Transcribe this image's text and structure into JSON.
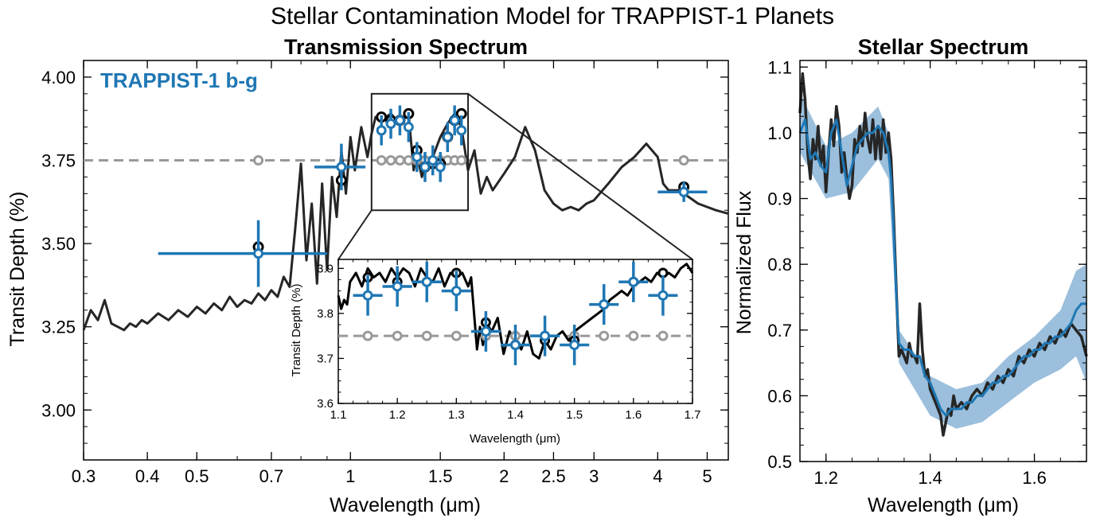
{
  "figure": {
    "suptitle": "Stellar Contamination Model for TRAPPIST-1 Planets"
  },
  "colors": {
    "model": "#262626",
    "data": "#1f77b4",
    "reference": "#999999",
    "model_points": "#000000",
    "band": "#8ab4d6"
  },
  "chart_data": [
    {
      "id": "transmission",
      "type": "line",
      "title": "Transmission Spectrum",
      "xlabel": "Wavelength (μm)",
      "ylabel": "Transit Depth (%)",
      "xscale": "log",
      "xlim": [
        0.3,
        5.5
      ],
      "ylim": [
        2.85,
        4.05
      ],
      "xticks": [
        0.3,
        0.4,
        0.5,
        0.7,
        1,
        1.5,
        2,
        2.5,
        3,
        4,
        5
      ],
      "xticklabels": [
        "0.3",
        "0.4",
        "0.5",
        "0.7",
        "1",
        "1.5",
        "2",
        "2.5",
        "3",
        "4",
        "5"
      ],
      "yticks": [
        3.0,
        3.25,
        3.5,
        3.75,
        4.0
      ],
      "yticklabels": [
        "3.00",
        "3.25",
        "3.50",
        "3.75",
        "4.00"
      ],
      "legend": {
        "text": "TRAPPIST-1 b-g",
        "loc": "upper left"
      },
      "reference_line": {
        "y": 3.75,
        "style": "dashed"
      },
      "model_line": {
        "x": [
          0.3,
          0.31,
          0.32,
          0.33,
          0.34,
          0.35,
          0.36,
          0.37,
          0.38,
          0.39,
          0.4,
          0.42,
          0.44,
          0.46,
          0.48,
          0.5,
          0.52,
          0.54,
          0.56,
          0.58,
          0.6,
          0.62,
          0.64,
          0.66,
          0.68,
          0.7,
          0.72,
          0.74,
          0.76,
          0.78,
          0.8,
          0.82,
          0.84,
          0.86,
          0.88,
          0.9,
          0.92,
          0.94,
          0.96,
          0.98,
          1.0,
          1.02,
          1.05,
          1.08,
          1.1,
          1.12,
          1.15,
          1.2,
          1.25,
          1.3,
          1.33,
          1.35,
          1.38,
          1.4,
          1.42,
          1.45,
          1.5,
          1.55,
          1.6,
          1.65,
          1.7,
          1.75,
          1.8,
          1.85,
          1.9,
          2.0,
          2.1,
          2.2,
          2.3,
          2.4,
          2.5,
          2.6,
          2.7,
          2.8,
          2.9,
          3.0,
          3.2,
          3.4,
          3.6,
          3.8,
          4.0,
          4.1,
          4.2,
          4.4,
          4.6,
          4.8,
          5.0,
          5.2,
          5.5
        ],
        "y": [
          3.24,
          3.3,
          3.27,
          3.33,
          3.26,
          3.25,
          3.24,
          3.26,
          3.25,
          3.27,
          3.26,
          3.29,
          3.27,
          3.3,
          3.28,
          3.31,
          3.29,
          3.32,
          3.3,
          3.34,
          3.31,
          3.33,
          3.32,
          3.35,
          3.33,
          3.36,
          3.34,
          3.4,
          3.37,
          3.55,
          3.74,
          3.45,
          3.62,
          3.38,
          3.68,
          3.42,
          3.7,
          3.58,
          3.78,
          3.65,
          3.82,
          3.72,
          3.85,
          3.76,
          3.83,
          3.88,
          3.87,
          3.89,
          3.86,
          3.89,
          3.72,
          3.77,
          3.7,
          3.73,
          3.74,
          3.76,
          3.82,
          3.86,
          3.89,
          3.85,
          3.72,
          3.78,
          3.65,
          3.7,
          3.66,
          3.71,
          3.76,
          3.85,
          3.78,
          3.66,
          3.62,
          3.6,
          3.61,
          3.6,
          3.62,
          3.63,
          3.68,
          3.73,
          3.76,
          3.8,
          3.76,
          3.68,
          3.66,
          3.66,
          3.64,
          3.62,
          3.61,
          3.6,
          3.59
        ]
      },
      "model_binned": {
        "x": [
          0.66,
          0.96,
          1.15,
          1.2,
          1.25,
          1.3,
          1.35,
          1.4,
          1.45,
          1.5,
          1.55,
          1.6,
          1.65,
          4.5
        ],
        "y": [
          3.49,
          3.69,
          3.88,
          3.87,
          3.87,
          3.89,
          3.78,
          3.73,
          3.74,
          3.74,
          3.82,
          3.87,
          3.89,
          3.67
        ]
      },
      "data_points": {
        "x": [
          0.66,
          0.96,
          1.15,
          1.2,
          1.25,
          1.3,
          1.35,
          1.4,
          1.45,
          1.5,
          1.55,
          1.6,
          1.65,
          4.5
        ],
        "y": [
          3.47,
          3.73,
          3.84,
          3.86,
          3.87,
          3.85,
          3.76,
          3.73,
          3.75,
          3.73,
          3.82,
          3.87,
          3.84,
          3.655
        ],
        "xerr_low": [
          0.24,
          0.11,
          0.025,
          0.025,
          0.025,
          0.025,
          0.025,
          0.025,
          0.025,
          0.025,
          0.025,
          0.025,
          0.025,
          0.5
        ],
        "xerr_high": [
          0.24,
          0.11,
          0.025,
          0.025,
          0.025,
          0.025,
          0.025,
          0.025,
          0.025,
          0.025,
          0.025,
          0.025,
          0.025,
          0.5
        ],
        "yerr": [
          0.1,
          0.07,
          0.045,
          0.045,
          0.045,
          0.045,
          0.045,
          0.045,
          0.045,
          0.045,
          0.045,
          0.045,
          0.045,
          0.03
        ]
      },
      "reference_points": {
        "x": [
          0.66,
          1.15,
          1.2,
          1.25,
          1.3,
          1.35,
          1.4,
          1.45,
          1.5,
          1.55,
          1.6,
          1.65,
          4.5
        ],
        "y": [
          3.75,
          3.75,
          3.75,
          3.75,
          3.75,
          3.75,
          3.75,
          3.75,
          3.75,
          3.75,
          3.75,
          3.75,
          3.75
        ]
      },
      "zoom_box": {
        "x": [
          1.1,
          1.7
        ],
        "y": [
          3.6,
          3.95
        ]
      }
    },
    {
      "id": "inset",
      "type": "line",
      "title": "",
      "xlabel": "Wavelength (μm)",
      "ylabel": "Transit Depth (%)",
      "xlim": [
        1.1,
        1.7
      ],
      "ylim": [
        3.6,
        3.92
      ],
      "xticks": [
        1.1,
        1.2,
        1.3,
        1.4,
        1.5,
        1.6,
        1.7
      ],
      "xticklabels": [
        "1.1",
        "1.2",
        "1.3",
        "1.4",
        "1.5",
        "1.6",
        "1.7"
      ],
      "yticks": [
        3.6,
        3.7,
        3.8,
        3.9
      ],
      "yticklabels": [
        "3.6",
        "3.7",
        "3.8",
        "3.9"
      ],
      "reference_line": {
        "y": 3.75,
        "style": "dashed"
      },
      "model_line": {
        "x": [
          1.1,
          1.105,
          1.11,
          1.115,
          1.12,
          1.13,
          1.14,
          1.15,
          1.16,
          1.17,
          1.18,
          1.19,
          1.2,
          1.21,
          1.22,
          1.23,
          1.24,
          1.25,
          1.26,
          1.27,
          1.28,
          1.29,
          1.3,
          1.31,
          1.32,
          1.325,
          1.33,
          1.335,
          1.34,
          1.345,
          1.35,
          1.36,
          1.37,
          1.38,
          1.39,
          1.4,
          1.41,
          1.42,
          1.43,
          1.44,
          1.45,
          1.46,
          1.47,
          1.48,
          1.49,
          1.5,
          1.51,
          1.52,
          1.53,
          1.54,
          1.55,
          1.56,
          1.57,
          1.58,
          1.59,
          1.6,
          1.61,
          1.62,
          1.63,
          1.64,
          1.65,
          1.66,
          1.67,
          1.68,
          1.69,
          1.7
        ],
        "y": [
          3.84,
          3.81,
          3.83,
          3.82,
          3.87,
          3.89,
          3.86,
          3.9,
          3.88,
          3.89,
          3.87,
          3.9,
          3.88,
          3.9,
          3.89,
          3.86,
          3.9,
          3.88,
          3.87,
          3.9,
          3.86,
          3.89,
          3.88,
          3.89,
          3.86,
          3.88,
          3.8,
          3.72,
          3.77,
          3.73,
          3.78,
          3.76,
          3.79,
          3.71,
          3.76,
          3.74,
          3.72,
          3.76,
          3.71,
          3.7,
          3.74,
          3.72,
          3.75,
          3.76,
          3.74,
          3.76,
          3.77,
          3.78,
          3.79,
          3.8,
          3.81,
          3.83,
          3.84,
          3.85,
          3.84,
          3.86,
          3.87,
          3.88,
          3.87,
          3.89,
          3.88,
          3.89,
          3.88,
          3.9,
          3.91,
          3.89
        ]
      },
      "model_binned": {
        "x": [
          1.15,
          1.2,
          1.25,
          1.3,
          1.35,
          1.4,
          1.45,
          1.5,
          1.55,
          1.6,
          1.65
        ],
        "y": [
          3.88,
          3.87,
          3.87,
          3.89,
          3.78,
          3.73,
          3.74,
          3.74,
          3.82,
          3.87,
          3.89
        ]
      },
      "data_points": {
        "x": [
          1.15,
          1.2,
          1.25,
          1.3,
          1.35,
          1.4,
          1.45,
          1.5,
          1.55,
          1.6,
          1.65
        ],
        "y": [
          3.84,
          3.86,
          3.87,
          3.85,
          3.76,
          3.73,
          3.75,
          3.73,
          3.82,
          3.87,
          3.84
        ],
        "xerr": [
          0.025,
          0.025,
          0.025,
          0.025,
          0.025,
          0.025,
          0.025,
          0.025,
          0.025,
          0.025,
          0.025
        ],
        "yerr": [
          0.045,
          0.045,
          0.045,
          0.045,
          0.045,
          0.045,
          0.045,
          0.045,
          0.045,
          0.045,
          0.045
        ]
      },
      "reference_points": {
        "x": [
          1.15,
          1.2,
          1.25,
          1.3,
          1.35,
          1.4,
          1.45,
          1.5,
          1.55,
          1.6,
          1.65
        ],
        "y": [
          3.75,
          3.75,
          3.75,
          3.75,
          3.75,
          3.75,
          3.75,
          3.75,
          3.75,
          3.75,
          3.75
        ]
      }
    },
    {
      "id": "stellar",
      "type": "line",
      "title": "Stellar Spectrum",
      "xlabel": "Wavelength (μm)",
      "ylabel": "Normalized Flux",
      "xlim": [
        1.15,
        1.7
      ],
      "ylim": [
        0.5,
        1.11
      ],
      "xticks": [
        1.2,
        1.4,
        1.6
      ],
      "xticklabels": [
        "1.2",
        "1.4",
        "1.6"
      ],
      "yticks": [
        0.5,
        0.6,
        0.7,
        0.8,
        0.9,
        1.0,
        1.1
      ],
      "yticklabels": [
        "0.5",
        "0.6",
        "0.7",
        "0.8",
        "0.9",
        "1.0",
        "1.1"
      ],
      "series": [
        {
          "style": "observed",
          "x": [
            1.15,
            1.155,
            1.16,
            1.165,
            1.17,
            1.175,
            1.18,
            1.185,
            1.19,
            1.195,
            1.2,
            1.205,
            1.21,
            1.215,
            1.22,
            1.225,
            1.23,
            1.235,
            1.24,
            1.245,
            1.25,
            1.255,
            1.26,
            1.265,
            1.27,
            1.275,
            1.28,
            1.285,
            1.29,
            1.295,
            1.3,
            1.305,
            1.31,
            1.315,
            1.32,
            1.325,
            1.33,
            1.335,
            1.34,
            1.345,
            1.35,
            1.355,
            1.36,
            1.365,
            1.37,
            1.375,
            1.38,
            1.385,
            1.39,
            1.395,
            1.4,
            1.405,
            1.41,
            1.415,
            1.42,
            1.425,
            1.43,
            1.435,
            1.44,
            1.445,
            1.45,
            1.46,
            1.47,
            1.48,
            1.49,
            1.5,
            1.51,
            1.52,
            1.53,
            1.54,
            1.55,
            1.56,
            1.57,
            1.58,
            1.59,
            1.6,
            1.61,
            1.62,
            1.63,
            1.64,
            1.65,
            1.66,
            1.67,
            1.68,
            1.69,
            1.7
          ],
          "y": [
            1.03,
            1.09,
            1.05,
            0.97,
            0.93,
            0.99,
            0.96,
            1.01,
            0.95,
            0.98,
            0.91,
            0.97,
            1.02,
            0.98,
            1.04,
            1.01,
            0.94,
            0.97,
            0.93,
            0.9,
            0.92,
            0.99,
            0.97,
            1.01,
            0.98,
            1.03,
            0.99,
            0.97,
            1.02,
            0.96,
            1.01,
            0.96,
            1.02,
            0.97,
            1.0,
            0.96,
            0.87,
            0.76,
            0.66,
            0.67,
            0.66,
            0.65,
            0.68,
            0.66,
            0.66,
            0.65,
            0.74,
            0.67,
            0.63,
            0.64,
            0.61,
            0.6,
            0.59,
            0.58,
            0.57,
            0.54,
            0.56,
            0.58,
            0.57,
            0.6,
            0.58,
            0.59,
            0.58,
            0.6,
            0.61,
            0.6,
            0.62,
            0.61,
            0.63,
            0.62,
            0.64,
            0.63,
            0.66,
            0.65,
            0.67,
            0.66,
            0.68,
            0.67,
            0.69,
            0.68,
            0.7,
            0.69,
            0.71,
            0.7,
            0.69,
            0.66
          ]
        },
        {
          "style": "model",
          "x": [
            1.15,
            1.16,
            1.17,
            1.18,
            1.19,
            1.2,
            1.21,
            1.22,
            1.23,
            1.24,
            1.25,
            1.26,
            1.27,
            1.28,
            1.29,
            1.3,
            1.31,
            1.32,
            1.325,
            1.33,
            1.335,
            1.34,
            1.35,
            1.36,
            1.37,
            1.38,
            1.39,
            1.4,
            1.41,
            1.42,
            1.43,
            1.44,
            1.45,
            1.46,
            1.47,
            1.48,
            1.49,
            1.5,
            1.51,
            1.52,
            1.53,
            1.54,
            1.55,
            1.56,
            1.57,
            1.58,
            1.59,
            1.6,
            1.61,
            1.62,
            1.63,
            1.64,
            1.65,
            1.66,
            1.67,
            1.68,
            1.69,
            1.7
          ],
          "y": [
            1.0,
            1.02,
            0.96,
            0.97,
            0.95,
            0.94,
            1.0,
            1.02,
            0.97,
            0.92,
            0.95,
            0.98,
            0.99,
            1.0,
            1.0,
            1.01,
            1.0,
            0.97,
            0.93,
            0.85,
            0.75,
            0.68,
            0.67,
            0.67,
            0.66,
            0.66,
            0.63,
            0.62,
            0.6,
            0.58,
            0.57,
            0.58,
            0.58,
            0.58,
            0.59,
            0.59,
            0.6,
            0.6,
            0.61,
            0.62,
            0.62,
            0.63,
            0.63,
            0.64,
            0.65,
            0.66,
            0.66,
            0.67,
            0.67,
            0.68,
            0.68,
            0.69,
            0.69,
            0.7,
            0.71,
            0.73,
            0.74,
            0.74
          ]
        }
      ],
      "band": {
        "x": [
          1.15,
          1.2,
          1.25,
          1.3,
          1.32,
          1.34,
          1.4,
          1.45,
          1.5,
          1.55,
          1.6,
          1.65,
          1.68,
          1.7
        ],
        "y_low": [
          0.97,
          0.9,
          0.91,
          0.96,
          0.93,
          0.65,
          0.57,
          0.55,
          0.56,
          0.59,
          0.62,
          0.64,
          0.66,
          0.62
        ],
        "y_high": [
          1.06,
          0.98,
          1.0,
          1.04,
          1.0,
          0.7,
          0.63,
          0.61,
          0.62,
          0.66,
          0.69,
          0.73,
          0.79,
          0.8
        ]
      }
    }
  ]
}
